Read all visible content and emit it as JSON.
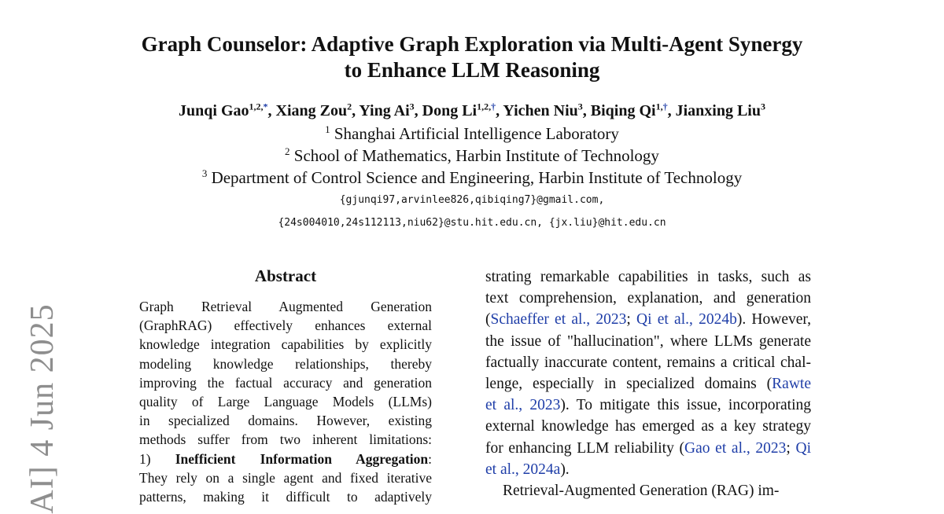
{
  "paper": {
    "title_line1": "Graph Counselor: Adaptive Graph Exploration via Multi-Agent Synergy",
    "title_line2": "to Enhance LLM Reasoning",
    "authors": [
      {
        "name": "Junqi Gao",
        "affil": "1,2,",
        "mark": "*",
        "sep": ", "
      },
      {
        "name": "Xiang Zou",
        "affil": "2",
        "mark": "",
        "sep": ", "
      },
      {
        "name": "Ying Ai",
        "affil": "3",
        "mark": "",
        "sep": ", "
      },
      {
        "name": "Dong Li",
        "affil": "1,2,",
        "mark": "†",
        "sep": ", "
      },
      {
        "name": "Yichen Niu",
        "affil": "3",
        "mark": "",
        "sep": ", "
      },
      {
        "name": "Biqing Qi",
        "affil": "1,",
        "mark": "†",
        "sep": ", "
      },
      {
        "name": "Jianxing Liu",
        "affil": "3",
        "mark": "",
        "sep": ""
      }
    ],
    "affiliations": [
      {
        "num": "1",
        "text": "Shanghai Artificial Intelligence Laboratory"
      },
      {
        "num": "2",
        "text": "School of Mathematics, Harbin Institute of Technology"
      },
      {
        "num": "3",
        "text": "Department of Control Science and Engineering, Harbin Institute of Technology"
      }
    ],
    "emails": [
      "{gjunqi97,arvinlee826,qibiqing7}@gmail.com,",
      "{24s004010,24s112113,niu62}@stu.hit.edu.cn, {jx.liu}@hit.edu.cn"
    ],
    "abstract_heading": "Abstract",
    "abstract_lines": [
      [
        {
          "t": "Graph Retrieval Augmented Generation"
        }
      ],
      [
        {
          "t": "(GraphRAG) effectively enhances external"
        }
      ],
      [
        {
          "t": "knowledge integration capabilities by explicitly"
        }
      ],
      [
        {
          "t": "modeling knowledge relationships, thereby"
        }
      ],
      [
        {
          "t": "improving the factual accuracy and generation"
        }
      ],
      [
        {
          "t": "quality of Large Language Models (LLMs)"
        }
      ],
      [
        {
          "t": "in specialized domains. However, existing"
        }
      ],
      [
        {
          "t": "methods suffer from two inherent limitations:"
        }
      ],
      [
        {
          "t": "1) "
        },
        {
          "t": "Inefficient Information Aggregation",
          "b": true
        },
        {
          "t": ":"
        }
      ],
      [
        {
          "t": "They rely on a single agent and fixed iterative"
        }
      ],
      [
        {
          "t": "patterns, making it difficult to adaptively"
        }
      ]
    ],
    "body_lines": [
      [
        {
          "t": "strating remarkable capabilities in tasks, such as"
        }
      ],
      [
        {
          "t": "text comprehension, explanation, and generation"
        }
      ],
      [
        {
          "t": "("
        },
        {
          "t": "Schaeffer et al., 2023",
          "c": true
        },
        {
          "t": "; "
        },
        {
          "t": "Qi et al., 2024b",
          "c": true
        },
        {
          "t": "). However,"
        }
      ],
      [
        {
          "t": "the issue of \"hallucination\", where LLMs generate"
        }
      ],
      [
        {
          "t": "factually inaccurate content, remains a critical chal-"
        }
      ],
      [
        {
          "t": "lenge, especially in specialized domains ("
        },
        {
          "t": "Rawte",
          "c": true
        }
      ],
      [
        {
          "t": "et al., 2023",
          "c": true
        },
        {
          "t": "). To mitigate this issue, incorporating"
        }
      ],
      [
        {
          "t": "external knowledge has emerged as a key strategy"
        }
      ],
      [
        {
          "t": "for enhancing LLM reliability ("
        },
        {
          "t": "Gao et al., 2023",
          "c": true
        },
        {
          "t": "; "
        },
        {
          "t": "Qi",
          "c": true
        }
      ],
      [
        {
          "t": "et al., 2024a",
          "c": true
        },
        {
          "t": ")."
        },
        {
          "last": true
        }
      ],
      [
        {
          "t": "Retrieval-Augmented Generation (RAG) im-"
        },
        {
          "indent": true
        }
      ]
    ],
    "arxiv_stamp": "AI]  4 Jun 2025"
  }
}
